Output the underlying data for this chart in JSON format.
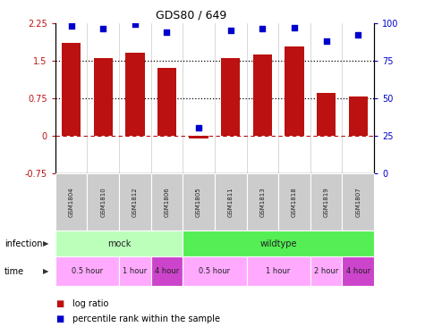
{
  "title": "GDS80 / 649",
  "samples": [
    "GSM1804",
    "GSM1810",
    "GSM1812",
    "GSM1806",
    "GSM1805",
    "GSM1811",
    "GSM1813",
    "GSM1818",
    "GSM1819",
    "GSM1807"
  ],
  "log_ratios": [
    1.85,
    1.55,
    1.65,
    1.35,
    -0.05,
    1.55,
    1.62,
    1.78,
    0.85,
    0.78
  ],
  "percentile_ranks": [
    98,
    96,
    99,
    94,
    30,
    95,
    96,
    97,
    88,
    92
  ],
  "bar_color": "#bb1111",
  "dot_color": "#0000cc",
  "ylim_left": [
    -0.75,
    2.25
  ],
  "ylim_right": [
    0,
    100
  ],
  "yticks_left": [
    -0.75,
    0,
    0.75,
    1.5,
    2.25
  ],
  "yticks_right": [
    0,
    25,
    50,
    75,
    100
  ],
  "hlines": [
    0.75,
    1.5
  ],
  "hline_color": "#000000",
  "zero_line_color": "#bb1111",
  "infection_groups": [
    {
      "label": "mock",
      "start": 0,
      "end": 4,
      "color": "#bbffbb"
    },
    {
      "label": "wildtype",
      "start": 4,
      "end": 10,
      "color": "#55ee55"
    }
  ],
  "time_groups": [
    {
      "label": "0.5 hour",
      "start": 0,
      "end": 2,
      "color": "#ffaaff"
    },
    {
      "label": "1 hour",
      "start": 2,
      "end": 3,
      "color": "#ffaaff"
    },
    {
      "label": "4 hour",
      "start": 3,
      "end": 4,
      "color": "#cc44cc"
    },
    {
      "label": "0.5 hour",
      "start": 4,
      "end": 6,
      "color": "#ffaaff"
    },
    {
      "label": "1 hour",
      "start": 6,
      "end": 8,
      "color": "#ffaaff"
    },
    {
      "label": "2 hour",
      "start": 8,
      "end": 9,
      "color": "#ffaaff"
    },
    {
      "label": "4 hour",
      "start": 9,
      "end": 10,
      "color": "#cc44cc"
    }
  ],
  "legend_red": "log ratio",
  "legend_blue": "percentile rank within the sample",
  "infection_label": "infection",
  "time_label": "time",
  "sample_bg_color": "#cccccc",
  "sample_border_color": "#ffffff",
  "background_color": "#ffffff"
}
